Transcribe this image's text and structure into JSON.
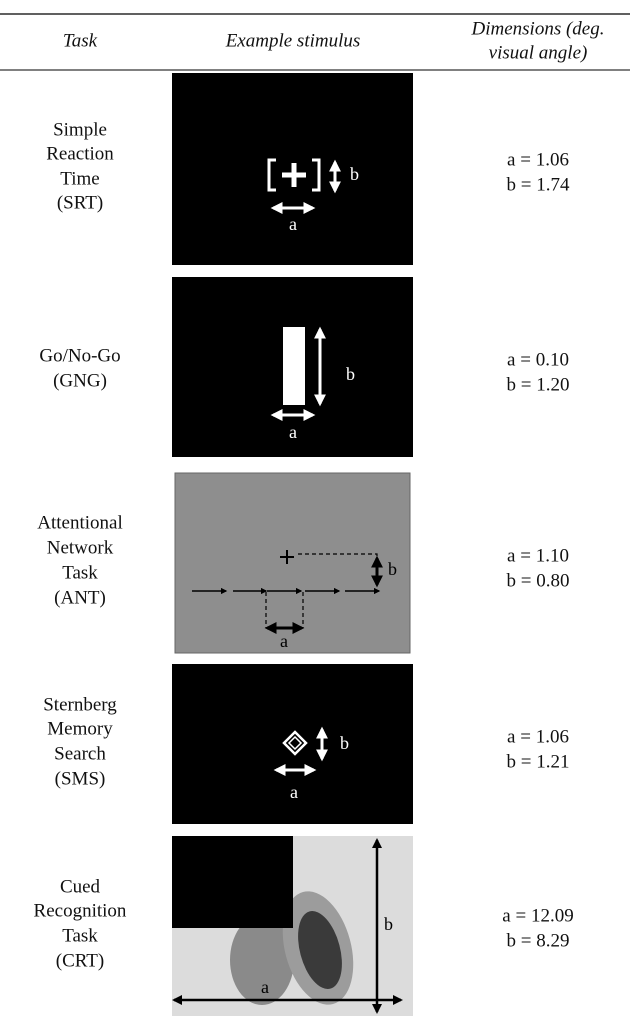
{
  "header": {
    "task": "Task",
    "stimulus": "Example stimulus",
    "dimensions": [
      "Dimensions (deg.",
      "visual angle)"
    ]
  },
  "rows": [
    {
      "task": [
        "Simple",
        "Reaction",
        "Time",
        "(SRT)"
      ],
      "stimulus_labels": [
        "a",
        "b"
      ],
      "dimensions": [
        "a = 1.06",
        "b = 1.74"
      ]
    },
    {
      "task": [
        "Go/No-Go",
        "(GNG)"
      ],
      "stimulus_labels": [
        "a",
        "b"
      ],
      "dimensions": [
        "a = 0.10",
        "b = 1.20"
      ]
    },
    {
      "task": [
        "Attentional",
        "Network",
        "Task",
        "(ANT)"
      ],
      "stimulus_labels": [
        "a",
        "b"
      ],
      "dimensions": [
        "a = 1.10",
        "b = 0.80"
      ]
    },
    {
      "task": [
        "Sternberg",
        "Memory",
        "Search",
        "(SMS)"
      ],
      "stimulus_labels": [
        "a",
        "b"
      ],
      "dimensions": [
        "a = 1.06",
        "b = 1.21"
      ]
    },
    {
      "task": [
        "Cued",
        "Recognition",
        "Task",
        "(CRT)"
      ],
      "stimulus_labels": [
        "a",
        "b"
      ],
      "dimensions": [
        "a = 12.09",
        "b = 8.29"
      ]
    }
  ]
}
